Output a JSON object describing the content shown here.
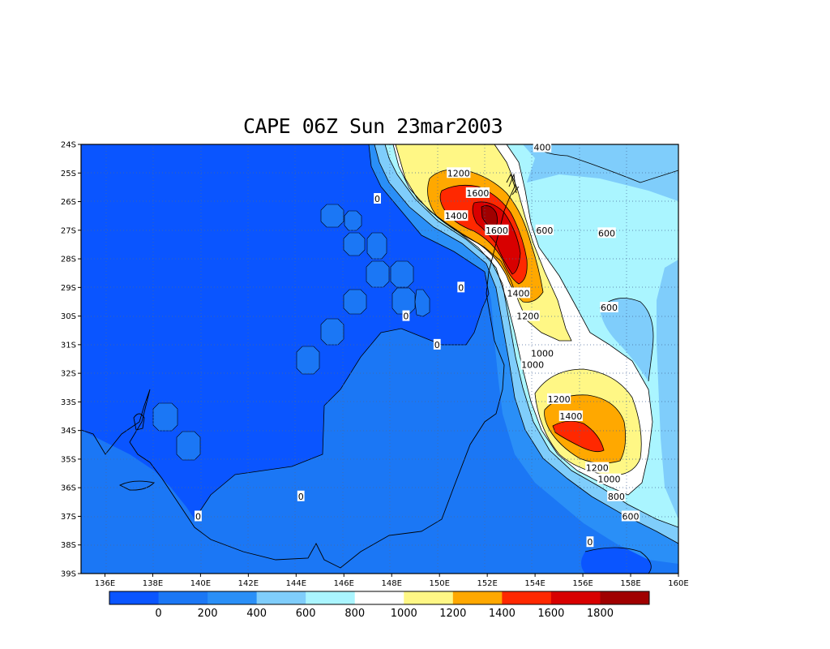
{
  "title": "CAPE 06Z Sun 23mar2003",
  "lat_labels": [
    "24S",
    "25S",
    "26S",
    "27S",
    "28S",
    "29S",
    "30S",
    "31S",
    "32S",
    "33S",
    "34S",
    "35S",
    "36S",
    "37S",
    "38S",
    "39S"
  ],
  "lon_labels": [
    "136E",
    "138E",
    "140E",
    "142E",
    "144E",
    "146E",
    "148E",
    "150E",
    "152E",
    "154E",
    "156E",
    "158E",
    "160E"
  ],
  "colorbar": {
    "colors": [
      "#0a55ff",
      "#1b77f5",
      "#2a8ff7",
      "#7fcdfb",
      "#aaf5ff",
      "#ffffff",
      "#fff785",
      "#ffa800",
      "#ff2800",
      "#d80000",
      "#a00000"
    ],
    "labels": [
      "0",
      "200",
      "400",
      "600",
      "800",
      "1000",
      "1200",
      "1400",
      "1600",
      "1800"
    ]
  },
  "contour_labels": [
    {
      "text": "400",
      "lat": -24.1,
      "lon": 154.3
    },
    {
      "text": "1200",
      "lat": -25.0,
      "lon": 150.8
    },
    {
      "text": "0",
      "lat": -25.9,
      "lon": 147.4
    },
    {
      "text": "1600",
      "lat": -25.7,
      "lon": 151.6
    },
    {
      "text": "1400",
      "lat": -26.5,
      "lon": 150.7
    },
    {
      "text": "1600",
      "lat": -27.0,
      "lon": 152.4
    },
    {
      "text": "600",
      "lat": -27.0,
      "lon": 154.4
    },
    {
      "text": "600",
      "lat": -27.1,
      "lon": 157.0
    },
    {
      "text": "0",
      "lat": -29.0,
      "lon": 150.9
    },
    {
      "text": "1400",
      "lat": -29.2,
      "lon": 153.3
    },
    {
      "text": "600",
      "lat": -29.7,
      "lon": 157.1
    },
    {
      "text": "0",
      "lat": -30.0,
      "lon": 148.6
    },
    {
      "text": "1200",
      "lat": -30.0,
      "lon": 153.7
    },
    {
      "text": "0",
      "lat": -31.0,
      "lon": 149.9
    },
    {
      "text": "1000",
      "lat": -31.3,
      "lon": 154.3
    },
    {
      "text": "1000",
      "lat": -31.7,
      "lon": 153.9
    },
    {
      "text": "1200",
      "lat": -32.9,
      "lon": 155.0
    },
    {
      "text": "1400",
      "lat": -33.5,
      "lon": 155.5
    },
    {
      "text": "1200",
      "lat": -35.3,
      "lon": 156.6
    },
    {
      "text": "1000",
      "lat": -35.7,
      "lon": 157.1
    },
    {
      "text": "800",
      "lat": -36.3,
      "lon": 157.4
    },
    {
      "text": "0",
      "lat": -36.3,
      "lon": 144.2
    },
    {
      "text": "600",
      "lat": -37.0,
      "lon": 158.0
    },
    {
      "text": "0",
      "lat": -37.0,
      "lon": 139.9
    },
    {
      "text": "0",
      "lat": -37.9,
      "lon": 156.3
    }
  ]
}
